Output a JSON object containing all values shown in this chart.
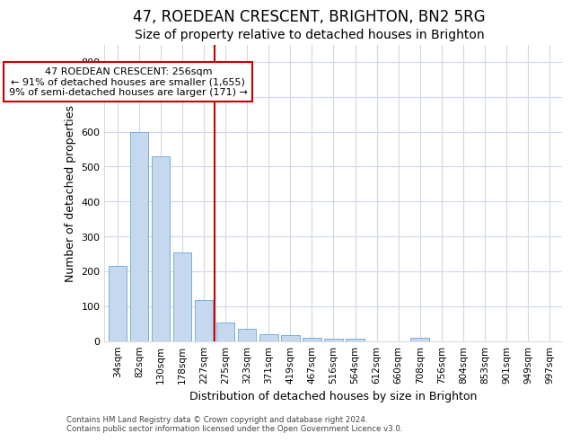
{
  "title1": "47, ROEDEAN CRESCENT, BRIGHTON, BN2 5RG",
  "title2": "Size of property relative to detached houses in Brighton",
  "xlabel": "Distribution of detached houses by size in Brighton",
  "ylabel": "Number of detached properties",
  "categories": [
    "34sqm",
    "82sqm",
    "130sqm",
    "178sqm",
    "227sqm",
    "275sqm",
    "323sqm",
    "371sqm",
    "419sqm",
    "467sqm",
    "516sqm",
    "564sqm",
    "612sqm",
    "660sqm",
    "708sqm",
    "756sqm",
    "804sqm",
    "853sqm",
    "901sqm",
    "949sqm",
    "997sqm"
  ],
  "values": [
    215,
    600,
    530,
    255,
    117,
    52,
    35,
    20,
    16,
    10,
    7,
    7,
    0,
    0,
    10,
    0,
    0,
    0,
    0,
    0,
    0
  ],
  "bar_color": "#c5d8f0",
  "bar_edge_color": "#7bafd4",
  "vline_x_index": 4.5,
  "vline_color": "#cc0000",
  "annotation_text": "47 ROEDEAN CRESCENT: 256sqm\n← 91% of detached houses are smaller (1,655)\n9% of semi-detached houses are larger (171) →",
  "annotation_box_color": "#cc0000",
  "ylim": [
    0,
    850
  ],
  "yticks": [
    0,
    100,
    200,
    300,
    400,
    500,
    600,
    700,
    800
  ],
  "footnote1": "Contains HM Land Registry data © Crown copyright and database right 2024.",
  "footnote2": "Contains public sector information licensed under the Open Government Licence v3.0.",
  "bg_color": "#ffffff",
  "plot_bg_color": "#ffffff",
  "grid_color": "#d0d8e8",
  "title1_fontsize": 12,
  "title2_fontsize": 10
}
